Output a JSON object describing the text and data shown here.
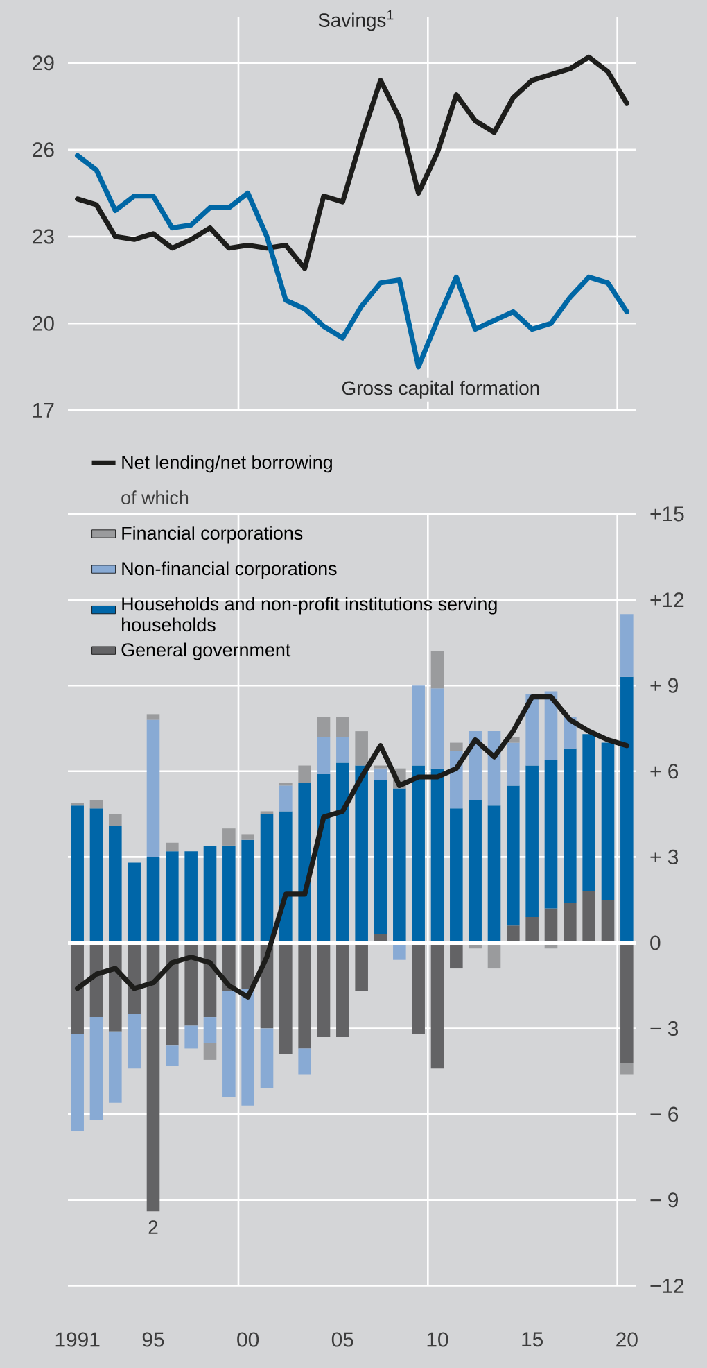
{
  "chart_data": [
    {
      "type": "line",
      "x": [
        1991,
        1992,
        1993,
        1994,
        1995,
        1996,
        1997,
        1998,
        1999,
        2000,
        2001,
        2002,
        2003,
        2004,
        2005,
        2006,
        2007,
        2008,
        2009,
        2010,
        2011,
        2012,
        2013,
        2014,
        2015,
        2016,
        2017,
        2018,
        2019,
        2020
      ],
      "xlim": [
        1990.5,
        2020.5
      ],
      "ylim": [
        17,
        30.6
      ],
      "yticks": [
        17,
        20,
        23,
        26,
        29
      ],
      "tick_labels": "y",
      "grid": "y",
      "ref_lines": [
        {
          "axis": "x",
          "value": 1999.5,
          "color": "#ffffff"
        },
        {
          "axis": "x",
          "value": 2009.5,
          "color": "#ffffff"
        },
        {
          "axis": "x",
          "value": 2019.5,
          "color": "#ffffff"
        }
      ],
      "series": [
        {
          "name": "Savings$^{1}$",
          "color": "#1d1d1b",
          "values": [
            24.3,
            24.1,
            23.0,
            22.9,
            23.1,
            22.6,
            22.9,
            23.3,
            22.6,
            22.7,
            22.6,
            22.7,
            21.9,
            24.4,
            24.2,
            26.4,
            28.4,
            27.1,
            24.5,
            25.9,
            27.9,
            27.0,
            26.6,
            27.8,
            28.4,
            28.6,
            28.8,
            29.2,
            28.7,
            27.6
          ]
        },
        {
          "name": "Gross capital formation",
          "color": "#0067a5",
          "values": [
            25.8,
            25.3,
            23.9,
            24.4,
            24.4,
            23.3,
            23.4,
            24.0,
            24.0,
            24.5,
            23.0,
            20.8,
            20.5,
            19.9,
            19.5,
            20.6,
            21.4,
            21.5,
            18.5,
            20.1,
            21.6,
            19.8,
            20.1,
            20.4,
            19.8,
            20.0,
            20.9,
            21.6,
            21.4,
            20.4
          ]
        }
      ]
    },
    {
      "type": "bar",
      "stacked": true,
      "x": [
        1991,
        1992,
        1993,
        1994,
        1995,
        1996,
        1997,
        1998,
        1999,
        2000,
        2001,
        2002,
        2003,
        2004,
        2005,
        2006,
        2007,
        2008,
        2009,
        2010,
        2011,
        2012,
        2013,
        2014,
        2015,
        2016,
        2017,
        2018,
        2019,
        2020
      ],
      "xlim": [
        1990.5,
        2020.5
      ],
      "xticks": [
        1991,
        {
          "value": 1995,
          "label": "95"
        },
        {
          "value": 2000,
          "label": "00"
        },
        {
          "value": 2005,
          "label": "05"
        },
        {
          "value": 2010,
          "label": "10"
        },
        {
          "value": 2015,
          "label": "15"
        },
        {
          "value": 2020,
          "label": "20"
        }
      ],
      "ylim": [
        -12,
        15
      ],
      "yticks": [
        {
          "value": -12,
          "label": "−12"
        },
        {
          "value": -9,
          "label": "− 9"
        },
        {
          "value": -6,
          "label": "− 6"
        },
        {
          "value": -3,
          "label": "− 3"
        },
        0,
        {
          "value": 3,
          "label": "+ 3"
        },
        {
          "value": 6,
          "label": "+ 6"
        },
        {
          "value": 9,
          "label": "+ 9"
        },
        {
          "value": 12,
          "label": "+12"
        },
        {
          "value": 15,
          "label": "+15"
        }
      ],
      "grid": "y",
      "legend": "top left",
      "legend_title": "of which",
      "ref_lines": [
        {
          "axis": "x",
          "value": 1999.5,
          "color": "#ffffff"
        },
        {
          "axis": "x",
          "value": 2009.5,
          "color": "#ffffff"
        },
        {
          "axis": "x",
          "value": 2019.5,
          "color": "#ffffff"
        }
      ],
      "annotations": [
        {
          "text": "2",
          "x": 1995,
          "y": -9.4
        }
      ],
      "series": [
        {
          "name": "Net lending/net borrowing",
          "type": "line",
          "color": "#1d1d1b",
          "values": [
            -1.6,
            -1.1,
            -0.9,
            -1.6,
            -1.4,
            -0.7,
            -0.5,
            -0.7,
            -1.5,
            -1.9,
            -0.5,
            1.7,
            1.7,
            4.4,
            4.6,
            5.8,
            6.9,
            5.5,
            5.8,
            5.8,
            6.1,
            7.1,
            6.5,
            7.4,
            8.6,
            8.6,
            7.8,
            7.4,
            7.1,
            6.9
          ]
        },
        {
          "name": "General government",
          "color": "#636365",
          "values": [
            -3.2,
            -2.6,
            -3.1,
            -2.5,
            -9.4,
            -3.6,
            -2.9,
            -2.6,
            -1.7,
            -1.6,
            -3.0,
            -3.9,
            -3.7,
            -3.3,
            -3.3,
            -1.7,
            0.3,
            null,
            -3.2,
            -4.4,
            -0.9,
            null,
            null,
            0.6,
            0.9,
            1.2,
            1.4,
            1.8,
            1.5,
            -4.2
          ]
        },
        {
          "name": "Households and non-profit institutions serving households",
          "color": "#0066a8",
          "values": [
            4.8,
            4.7,
            4.1,
            2.8,
            3.0,
            3.2,
            3.2,
            3.4,
            3.4,
            3.6,
            4.5,
            4.6,
            5.6,
            5.9,
            6.3,
            6.2,
            5.4,
            5.4,
            6.2,
            6.1,
            4.7,
            5.0,
            4.8,
            4.9,
            5.3,
            5.2,
            5.4,
            5.5,
            5.5,
            9.3
          ]
        },
        {
          "name": "Non-financial corporations",
          "color": "#88aad4",
          "values": [
            -3.4,
            -3.6,
            -2.5,
            -1.9,
            4.8,
            -0.7,
            -0.8,
            -0.9,
            -3.7,
            -4.1,
            -2.1,
            0.9,
            -0.9,
            1.3,
            0.9,
            null,
            0.4,
            -0.6,
            2.8,
            2.8,
            2.0,
            2.4,
            2.6,
            1.5,
            2.5,
            2.4,
            1.1,
            null,
            null,
            2.2
          ]
        },
        {
          "name": "Financial corporations",
          "color": "#9a9b9d",
          "values": [
            0.1,
            0.3,
            0.4,
            null,
            0.2,
            0.3,
            null,
            -0.6,
            0.6,
            0.2,
            0.1,
            0.1,
            0.6,
            0.7,
            0.7,
            1.2,
            0.1,
            0.7,
            null,
            1.3,
            0.3,
            -0.2,
            -0.9,
            0.2,
            null,
            -0.2,
            null,
            null,
            null,
            -0.4
          ]
        }
      ]
    }
  ]
}
